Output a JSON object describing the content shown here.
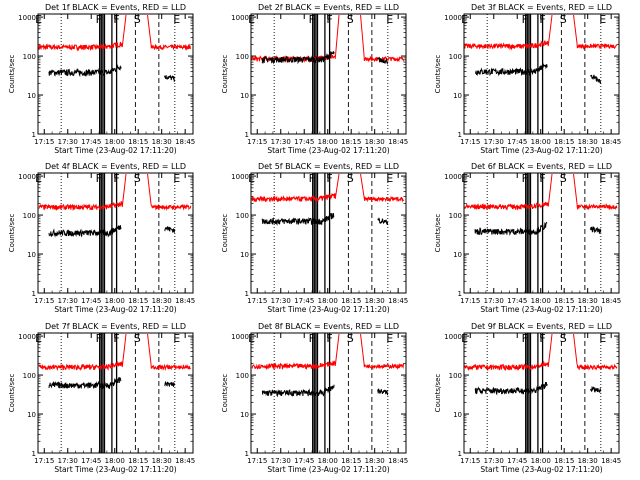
{
  "chart_data": [
    {
      "type": "line",
      "title": "Det 1f BLACK = Events, RED = LLD",
      "xlabel": "Start Time (23-Aug-02 17:11:20)",
      "ylabel": "Counts/sec",
      "x_ticks": [
        "17:15",
        "17:30",
        "17:45",
        "18:00",
        "18:15",
        "18:30",
        "18:45"
      ],
      "y_ticks": [
        "1",
        "10",
        "100",
        "1000"
      ],
      "ylim": [
        1,
        1200
      ],
      "y_scale": "log",
      "flag_letters": [
        "E",
        "F",
        "F",
        "S",
        "E"
      ],
      "series": [
        {
          "color": "#ff0000",
          "level": 170,
          "peak": 1100
        },
        {
          "color": "#000000",
          "level": 38,
          "end": [
            30,
            26
          ]
        }
      ]
    },
    {
      "type": "line",
      "title": "Det 2f BLACK = Events, RED = LLD",
      "xlabel": "Start Time (23-Aug-02 17:11:20)",
      "ylabel": "Counts/sec",
      "x_ticks": [
        "17:15",
        "17:30",
        "17:45",
        "18:00",
        "18:15",
        "18:30",
        "18:45"
      ],
      "y_ticks": [
        "1",
        "10",
        "100",
        "1000"
      ],
      "ylim": [
        1,
        1200
      ],
      "y_scale": "log",
      "flag_letters": [
        "E",
        "F",
        "F",
        "S",
        "E"
      ],
      "series": [
        {
          "color": "#ff0000",
          "level": 85,
          "peak": 1100
        },
        {
          "color": "#000000",
          "level": 82,
          "end": [
            80,
            75
          ]
        }
      ]
    },
    {
      "type": "line",
      "title": "Det 3f BLACK = Events, RED = LLD",
      "xlabel": "Start Time (23-Aug-02 17:11:20)",
      "ylabel": "Counts/sec",
      "x_ticks": [
        "17:15",
        "17:30",
        "17:45",
        "18:00",
        "18:15",
        "18:30",
        "18:45"
      ],
      "y_ticks": [
        "1",
        "10",
        "100",
        "1000"
      ],
      "ylim": [
        1,
        1200
      ],
      "y_scale": "log",
      "flag_letters": [
        "E",
        "F",
        "F",
        "S",
        "E"
      ],
      "series": [
        {
          "color": "#ff0000",
          "level": 180,
          "peak": 1100
        },
        {
          "color": "#000000",
          "level": 40,
          "end": [
            30,
            22
          ]
        }
      ]
    },
    {
      "type": "line",
      "title": "Det 4f BLACK = Events, RED = LLD",
      "xlabel": "Start Time (23-Aug-02 17:11:20)",
      "ylabel": "Counts/sec",
      "x_ticks": [
        "17:15",
        "17:30",
        "17:45",
        "18:00",
        "18:15",
        "18:30",
        "18:45"
      ],
      "y_ticks": [
        "1",
        "10",
        "100",
        "1000"
      ],
      "ylim": [
        1,
        1200
      ],
      "y_scale": "log",
      "flag_letters": [
        "E",
        "F",
        "F",
        "S",
        "E"
      ],
      "series": [
        {
          "color": "#ff0000",
          "level": 160,
          "peak": 1100
        },
        {
          "color": "#000000",
          "level": 35,
          "end": [
            48,
            40
          ]
        }
      ]
    },
    {
      "type": "line",
      "title": "Det 5f BLACK = Events, RED = LLD",
      "xlabel": "Start Time (23-Aug-02 17:11:20)",
      "ylabel": "Counts/sec",
      "x_ticks": [
        "17:15",
        "17:30",
        "17:45",
        "18:00",
        "18:15",
        "18:30",
        "18:45"
      ],
      "y_ticks": [
        "1",
        "10",
        "100",
        "1000"
      ],
      "ylim": [
        1,
        1200
      ],
      "y_scale": "log",
      "flag_letters": [
        "E",
        "F",
        "F",
        "S",
        "E"
      ],
      "series": [
        {
          "color": "#ff0000",
          "level": 260,
          "peak": 1100
        },
        {
          "color": "#000000",
          "level": 70,
          "end": [
            75,
            65
          ]
        }
      ]
    },
    {
      "type": "line",
      "title": "Det 6f BLACK = Events, RED = LLD",
      "xlabel": "Start Time (23-Aug-02 17:11:20)",
      "ylabel": "Counts/sec",
      "x_ticks": [
        "17:15",
        "17:30",
        "17:45",
        "18:00",
        "18:15",
        "18:30",
        "18:45"
      ],
      "y_ticks": [
        "1",
        "10",
        "100",
        "1000"
      ],
      "ylim": [
        1,
        1200
      ],
      "y_scale": "log",
      "flag_letters": [
        "E",
        "F",
        "F",
        "S",
        "E"
      ],
      "series": [
        {
          "color": "#ff0000",
          "level": 165,
          "peak": 1100
        },
        {
          "color": "#000000",
          "level": 38,
          "end": [
            45,
            38
          ]
        }
      ]
    },
    {
      "type": "line",
      "title": "Det 7f BLACK = Events, RED = LLD",
      "xlabel": "Start Time (23-Aug-02 17:11:20)",
      "ylabel": "Counts/sec",
      "x_ticks": [
        "17:15",
        "17:30",
        "17:45",
        "18:00",
        "18:15",
        "18:30",
        "18:45"
      ],
      "y_ticks": [
        "1",
        "10",
        "100",
        "1000"
      ],
      "ylim": [
        1,
        1200
      ],
      "y_scale": "log",
      "flag_letters": [
        "E",
        "F",
        "F",
        "S",
        "E"
      ],
      "series": [
        {
          "color": "#ff0000",
          "level": 160,
          "peak": 1100
        },
        {
          "color": "#000000",
          "level": 55,
          "end": [
            60,
            55
          ]
        }
      ]
    },
    {
      "type": "line",
      "title": "Det 8f BLACK = Events, RED = LLD",
      "xlabel": "Start Time (23-Aug-02 17:11:20)",
      "ylabel": "Counts/sec",
      "x_ticks": [
        "17:15",
        "17:30",
        "17:45",
        "18:00",
        "18:15",
        "18:30",
        "18:45"
      ],
      "y_ticks": [
        "1",
        "10",
        "100",
        "1000"
      ],
      "ylim": [
        1,
        1200
      ],
      "y_scale": "log",
      "flag_letters": [
        "E",
        "F",
        "F",
        "S",
        "E"
      ],
      "series": [
        {
          "color": "#ff0000",
          "level": 170,
          "peak": 1100
        },
        {
          "color": "#000000",
          "level": 35,
          "end": [
            40,
            35
          ]
        }
      ]
    },
    {
      "type": "line",
      "title": "Det 9f BLACK = Events, RED = LLD",
      "xlabel": "Start Time (23-Aug-02 17:11:20)",
      "ylabel": "Counts/sec",
      "x_ticks": [
        "17:15",
        "17:30",
        "17:45",
        "18:00",
        "18:15",
        "18:30",
        "18:45"
      ],
      "y_ticks": [
        "1",
        "10",
        "100",
        "1000"
      ],
      "ylim": [
        1,
        1200
      ],
      "y_scale": "log",
      "flag_letters": [
        "E",
        "F",
        "F",
        "S",
        "E"
      ],
      "series": [
        {
          "color": "#ff0000",
          "level": 160,
          "peak": 1100
        },
        {
          "color": "#000000",
          "level": 40,
          "end": [
            45,
            38
          ]
        }
      ]
    }
  ]
}
